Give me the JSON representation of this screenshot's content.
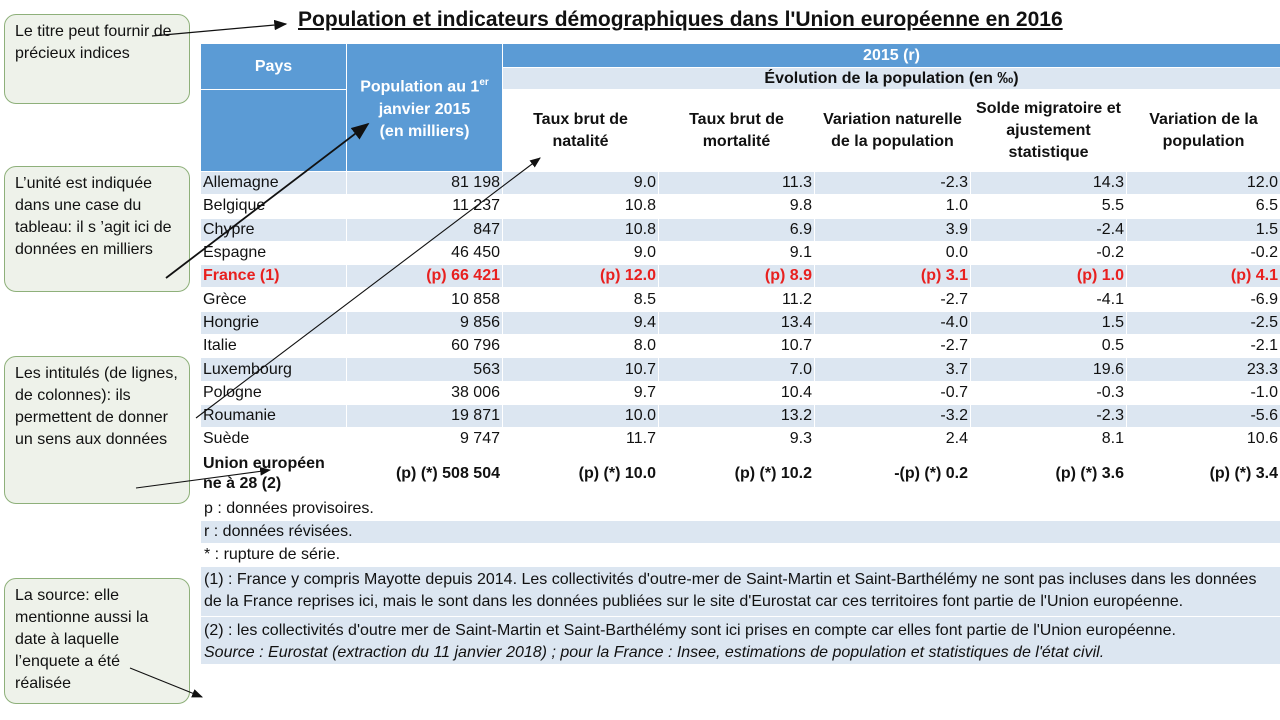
{
  "title": "Population et indicateurs démographiques dans l'Union européenne en 2016",
  "callouts": {
    "title_hint": "Le titre peut fournir de précieux indices",
    "unit_hint": "L’unité est indiquée dans une case du tableau: il s ’agit ici de données en milliers",
    "labels_hint": "Les intitulés (de lignes, de colonnes): ils permettent de donner un sens aux données",
    "source_hint": "La source: elle mentionne aussi la date à laquelle l’enquete a été réalisée"
  },
  "table": {
    "header": {
      "pays": "Pays",
      "population_line1": "Population au 1",
      "population_sup": "er",
      "population_line2": "janvier 2015",
      "population_line3": "(en milliers)",
      "year": "2015 (r)",
      "evolution": "Évolution de la population (en ‰)",
      "columns": [
        "Taux brut de natalité",
        "Taux brut de mortalité",
        "Variation naturelle de la population",
        "Solde migratoire et ajustement statistique",
        "Variation de la population"
      ]
    },
    "rows": [
      {
        "pays": "Allemagne",
        "pop": "81 198",
        "natalite": "9.0",
        "mortalite": "11.3",
        "var_nat": "-2.3",
        "solde": "14.3",
        "var_pop": "12.0"
      },
      {
        "pays": "Belgique",
        "pop": "11 237",
        "natalite": "10.8",
        "mortalite": "9.8",
        "var_nat": "1.0",
        "solde": "5.5",
        "var_pop": "6.5"
      },
      {
        "pays": "Chypre",
        "pop": "847",
        "natalite": "10.8",
        "mortalite": "6.9",
        "var_nat": "3.9",
        "solde": "-2.4",
        "var_pop": "1.5"
      },
      {
        "pays": "Espagne",
        "pop": "46 450",
        "natalite": "9.0",
        "mortalite": "9.1",
        "var_nat": "0.0",
        "solde": "-0.2",
        "var_pop": "-0.2"
      },
      {
        "pays": "France (1)",
        "pop": "(p) 66 421",
        "natalite": "(p) 12.0",
        "mortalite": "(p) 8.9",
        "var_nat": "(p) 3.1",
        "solde": "(p) 1.0",
        "var_pop": "(p) 4.1"
      },
      {
        "pays": "Grèce",
        "pop": "10 858",
        "natalite": "8.5",
        "mortalite": "11.2",
        "var_nat": "-2.7",
        "solde": "-4.1",
        "var_pop": "-6.9"
      },
      {
        "pays": "Hongrie",
        "pop": "9 856",
        "natalite": "9.4",
        "mortalite": "13.4",
        "var_nat": "-4.0",
        "solde": "1.5",
        "var_pop": "-2.5"
      },
      {
        "pays": "Italie",
        "pop": "60 796",
        "natalite": "8.0",
        "mortalite": "10.7",
        "var_nat": "-2.7",
        "solde": "0.5",
        "var_pop": "-2.1"
      },
      {
        "pays": "Luxembourg",
        "pop": "563",
        "natalite": "10.7",
        "mortalite": "7.0",
        "var_nat": "3.7",
        "solde": "19.6",
        "var_pop": "23.3"
      },
      {
        "pays": "Pologne",
        "pop": "38 006",
        "natalite": "9.7",
        "mortalite": "10.4",
        "var_nat": "-0.7",
        "solde": "-0.3",
        "var_pop": "-1.0"
      },
      {
        "pays": "Roumanie",
        "pop": "19 871",
        "natalite": "10.0",
        "mortalite": "13.2",
        "var_nat": "-3.2",
        "solde": "-2.3",
        "var_pop": "-5.6"
      },
      {
        "pays": "Suède",
        "pop": "9 747",
        "natalite": "11.7",
        "mortalite": "9.3",
        "var_nat": "2.4",
        "solde": "8.1",
        "var_pop": "10.6"
      },
      {
        "pays": "Union européen ne à 28 (2)",
        "pop": "(p) (*) 508 504",
        "natalite": "(p) (*) 10.0",
        "mortalite": "(p) (*) 10.2",
        "var_nat": "-(p) (*) 0.2",
        "solde": "(p) (*) 3.6",
        "var_pop": "(p) (*) 3.4"
      }
    ],
    "notes": {
      "p": "p : données provisoires.",
      "r": "r : données révisées.",
      "star": "* : rupture de série.",
      "note1": "(1) : France y compris Mayotte depuis 2014. Les collectivités d'outre-mer de Saint-Martin et Saint-Barthélémy ne sont pas incluses dans les données de la France reprises ici, mais le sont dans les données publiées sur le site d'Eurostat car ces territoires font partie de l'Union européenne.",
      "note2": "(2) : les collectivités d'outre mer de Saint-Martin et Saint-Barthélémy sont ici prises en compte car elles font partie de l'Union européenne.",
      "source": "Source : Eurostat (extraction du 11 janvier 2018) ; pour la France : Insee, estimations de population et statistiques de l'état civil."
    }
  },
  "colors": {
    "header_blue": "#5b9bd5",
    "band_light": "#dce6f1",
    "france_red": "#e8201f",
    "callout_border": "#8eb07a"
  }
}
